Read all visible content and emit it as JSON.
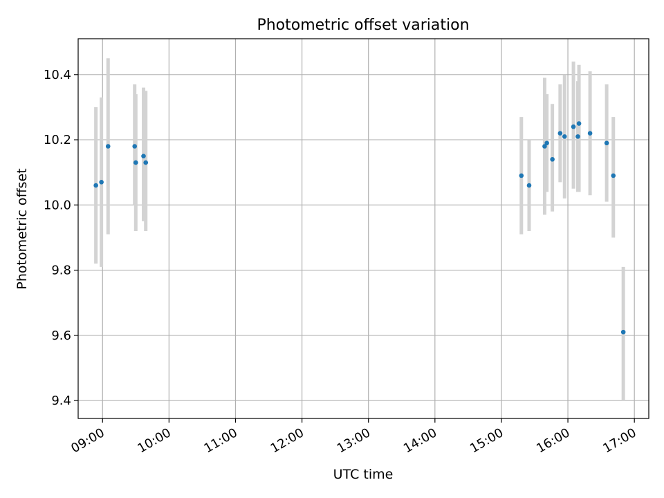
{
  "chart_data": {
    "type": "scatter",
    "title": "Photometric offset variation",
    "xlabel": "UTC time",
    "ylabel": "Photometric offset",
    "grid": true,
    "xlim": [
      "08:38",
      "17:13"
    ],
    "ylim": [
      9.345,
      10.51
    ],
    "x_ticks": [
      "09:00",
      "10:00",
      "11:00",
      "12:00",
      "13:00",
      "14:00",
      "15:00",
      "16:00",
      "17:00"
    ],
    "y_ticks": [
      "9.4",
      "9.6",
      "9.8",
      "10.0",
      "10.2",
      "10.4"
    ],
    "colors": {
      "point": "#1f77b4",
      "errorbar": "#d3d3d3",
      "grid": "#b0b0b0"
    },
    "points": [
      {
        "x": "08:54",
        "y": 10.06,
        "ylow": 9.82,
        "yhigh": 10.3
      },
      {
        "x": "08:59",
        "y": 10.07,
        "ylow": 9.81,
        "yhigh": 10.33
      },
      {
        "x": "09:05",
        "y": 10.18,
        "ylow": 9.91,
        "yhigh": 10.45
      },
      {
        "x": "09:29",
        "y": 10.18,
        "ylow": 10.0,
        "yhigh": 10.37
      },
      {
        "x": "09:30",
        "y": 10.13,
        "ylow": 9.92,
        "yhigh": 10.34
      },
      {
        "x": "09:37",
        "y": 10.15,
        "ylow": 9.95,
        "yhigh": 10.36
      },
      {
        "x": "09:39",
        "y": 10.13,
        "ylow": 9.92,
        "yhigh": 10.35
      },
      {
        "x": "15:18",
        "y": 10.09,
        "ylow": 9.91,
        "yhigh": 10.27
      },
      {
        "x": "15:25",
        "y": 10.06,
        "ylow": 9.92,
        "yhigh": 10.2
      },
      {
        "x": "15:39",
        "y": 10.18,
        "ylow": 9.97,
        "yhigh": 10.39
      },
      {
        "x": "15:41",
        "y": 10.19,
        "ylow": 10.04,
        "yhigh": 10.34
      },
      {
        "x": "15:46",
        "y": 10.14,
        "ylow": 9.98,
        "yhigh": 10.31
      },
      {
        "x": "15:53",
        "y": 10.22,
        "ylow": 10.07,
        "yhigh": 10.37
      },
      {
        "x": "15:57",
        "y": 10.21,
        "ylow": 10.02,
        "yhigh": 10.4
      },
      {
        "x": "16:05",
        "y": 10.24,
        "ylow": 10.05,
        "yhigh": 10.44
      },
      {
        "x": "16:09",
        "y": 10.21,
        "ylow": 10.04,
        "yhigh": 10.38
      },
      {
        "x": "16:10",
        "y": 10.25,
        "ylow": 10.04,
        "yhigh": 10.43
      },
      {
        "x": "16:20",
        "y": 10.22,
        "ylow": 10.03,
        "yhigh": 10.41
      },
      {
        "x": "16:35",
        "y": 10.19,
        "ylow": 10.01,
        "yhigh": 10.37
      },
      {
        "x": "16:41",
        "y": 10.09,
        "ylow": 9.9,
        "yhigh": 10.27
      },
      {
        "x": "16:50",
        "y": 9.61,
        "ylow": 9.4,
        "yhigh": 9.81
      }
    ]
  }
}
